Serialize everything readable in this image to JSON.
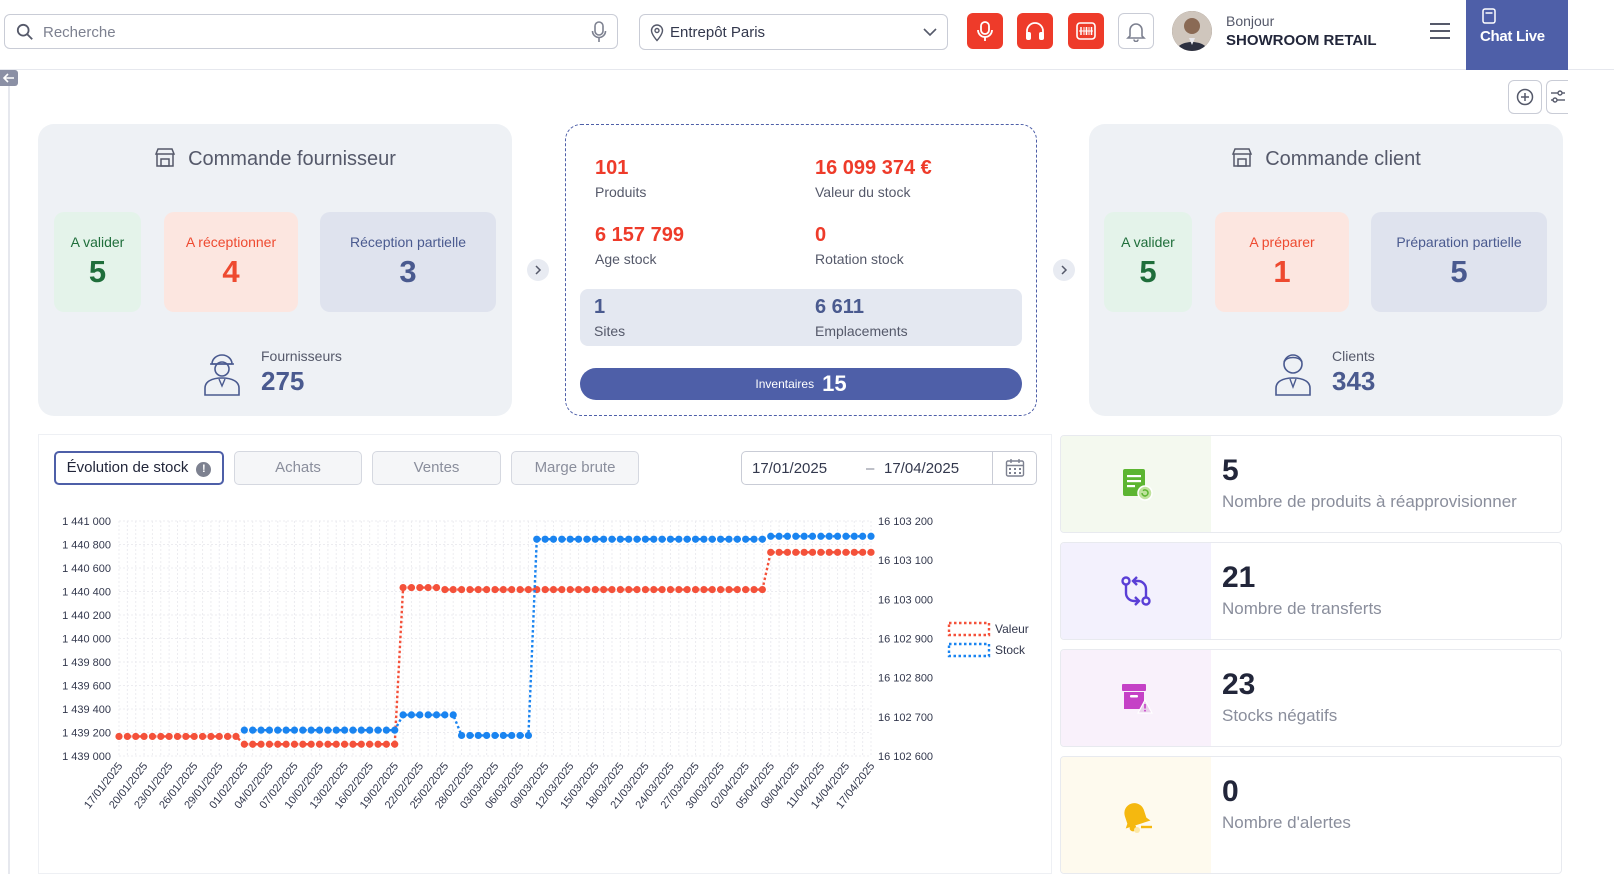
{
  "header": {
    "search_placeholder": "Recherche",
    "warehouse": "Entrepôt Paris",
    "greeting": "Bonjour",
    "company": "SHOWROOM RETAIL",
    "chat_live": "Chat Live"
  },
  "supplier_orders": {
    "title": "Commande fournisseur",
    "to_validate_label": "A valider",
    "to_validate_value": "5",
    "to_receive_label": "A réceptionner",
    "to_receive_value": "4",
    "partial_label": "Réception partielle",
    "partial_value": "3",
    "suppliers_label": "Fournisseurs",
    "suppliers_value": "275"
  },
  "stock_summary": {
    "products_value": "101",
    "products_label": "Produits",
    "stock_value_value": "16 099 374 €",
    "stock_value_label": "Valeur du stock",
    "age_value": "6 157 799",
    "age_label": "Age stock",
    "rotation_value": "0",
    "rotation_label": "Rotation stock",
    "sites_value": "1",
    "sites_label": "Sites",
    "locations_value": "6 611",
    "locations_label": "Emplacements",
    "inventories_label": "Inventaires",
    "inventories_value": "15"
  },
  "customer_orders": {
    "title": "Commande client",
    "to_validate_label": "A valider",
    "to_validate_value": "5",
    "to_prepare_label": "A préparer",
    "to_prepare_value": "1",
    "partial_label": "Préparation partielle",
    "partial_value": "5",
    "clients_label": "Clients",
    "clients_value": "343"
  },
  "chart_tabs": {
    "evolution": "Évolution de stock",
    "achats": "Achats",
    "ventes": "Ventes",
    "marge": "Marge brute"
  },
  "date_range": {
    "from": "17/01/2025",
    "separator": "–",
    "to": "17/04/2025"
  },
  "kpis": [
    {
      "value": "5",
      "label": "Nombre de produits à réapprovisionner"
    },
    {
      "value": "21",
      "label": "Nombre de transferts"
    },
    {
      "value": "23",
      "label": "Stocks négatifs"
    },
    {
      "value": "0",
      "label": "Nombre d'alertes"
    }
  ],
  "colors": {
    "accent": "#4e5fa8",
    "red": "#ee3b2a",
    "valeur": "#f4513a",
    "stock": "#1a84f0"
  },
  "chart_data": {
    "type": "line",
    "x_ticks": [
      "17/01/2025",
      "20/01/2025",
      "23/01/2025",
      "26/01/2025",
      "29/01/2025",
      "01/02/2025",
      "04/02/2025",
      "07/02/2025",
      "10/02/2025",
      "13/02/2025",
      "16/02/2025",
      "19/02/2025",
      "22/02/2025",
      "25/02/2025",
      "28/02/2025",
      "03/03/2025",
      "06/03/2025",
      "09/03/2025",
      "12/03/2025",
      "15/03/2025",
      "18/03/2025",
      "21/03/2025",
      "24/03/2025",
      "27/03/2025",
      "30/03/2025",
      "02/04/2025",
      "05/04/2025",
      "08/04/2025",
      "11/04/2025",
      "14/04/2025",
      "17/04/2025"
    ],
    "y_left_ticks": [
      "1 441 000",
      "1 440 800",
      "1 440 600",
      "1 440 400",
      "1 440 200",
      "1 440 000",
      "1 439 800",
      "1 439 600",
      "1 439 400",
      "1 439 200",
      "1 439 000"
    ],
    "y_left_range": [
      1439000,
      1441000
    ],
    "y_right_ticks": [
      "16 103 200",
      "16 103 100",
      "16 103 000",
      "16 102 900",
      "16 102 800",
      "16 102 700",
      "16 102 600"
    ],
    "y_right_range": [
      16102600,
      16103200
    ],
    "legend_position": "right",
    "grid": true,
    "series": [
      {
        "name": "Valeur",
        "axis": "right",
        "segments": [
          {
            "from": "17/01/2025",
            "to": "31/01/2025",
            "value": 16102650
          },
          {
            "from": "01/02/2025",
            "to": "19/02/2025",
            "value": 16102630
          },
          {
            "from": "20/02/2025",
            "to": "24/02/2025",
            "value": 16103030
          },
          {
            "from": "25/02/2025",
            "to": "04/04/2025",
            "value": 16103025
          },
          {
            "from": "05/04/2025",
            "to": "17/04/2025",
            "value": 16103120
          }
        ]
      },
      {
        "name": "Stock",
        "axis": "left",
        "segments": [
          {
            "from": "01/02/2025",
            "to": "19/02/2025",
            "value": 1439220
          },
          {
            "from": "20/02/2025",
            "to": "26/02/2025",
            "value": 1439350
          },
          {
            "from": "27/02/2025",
            "to": "07/03/2025",
            "value": 1439175
          },
          {
            "from": "08/03/2025",
            "to": "04/04/2025",
            "value": 1440845
          },
          {
            "from": "05/04/2025",
            "to": "17/04/2025",
            "value": 1440870
          }
        ]
      }
    ]
  }
}
